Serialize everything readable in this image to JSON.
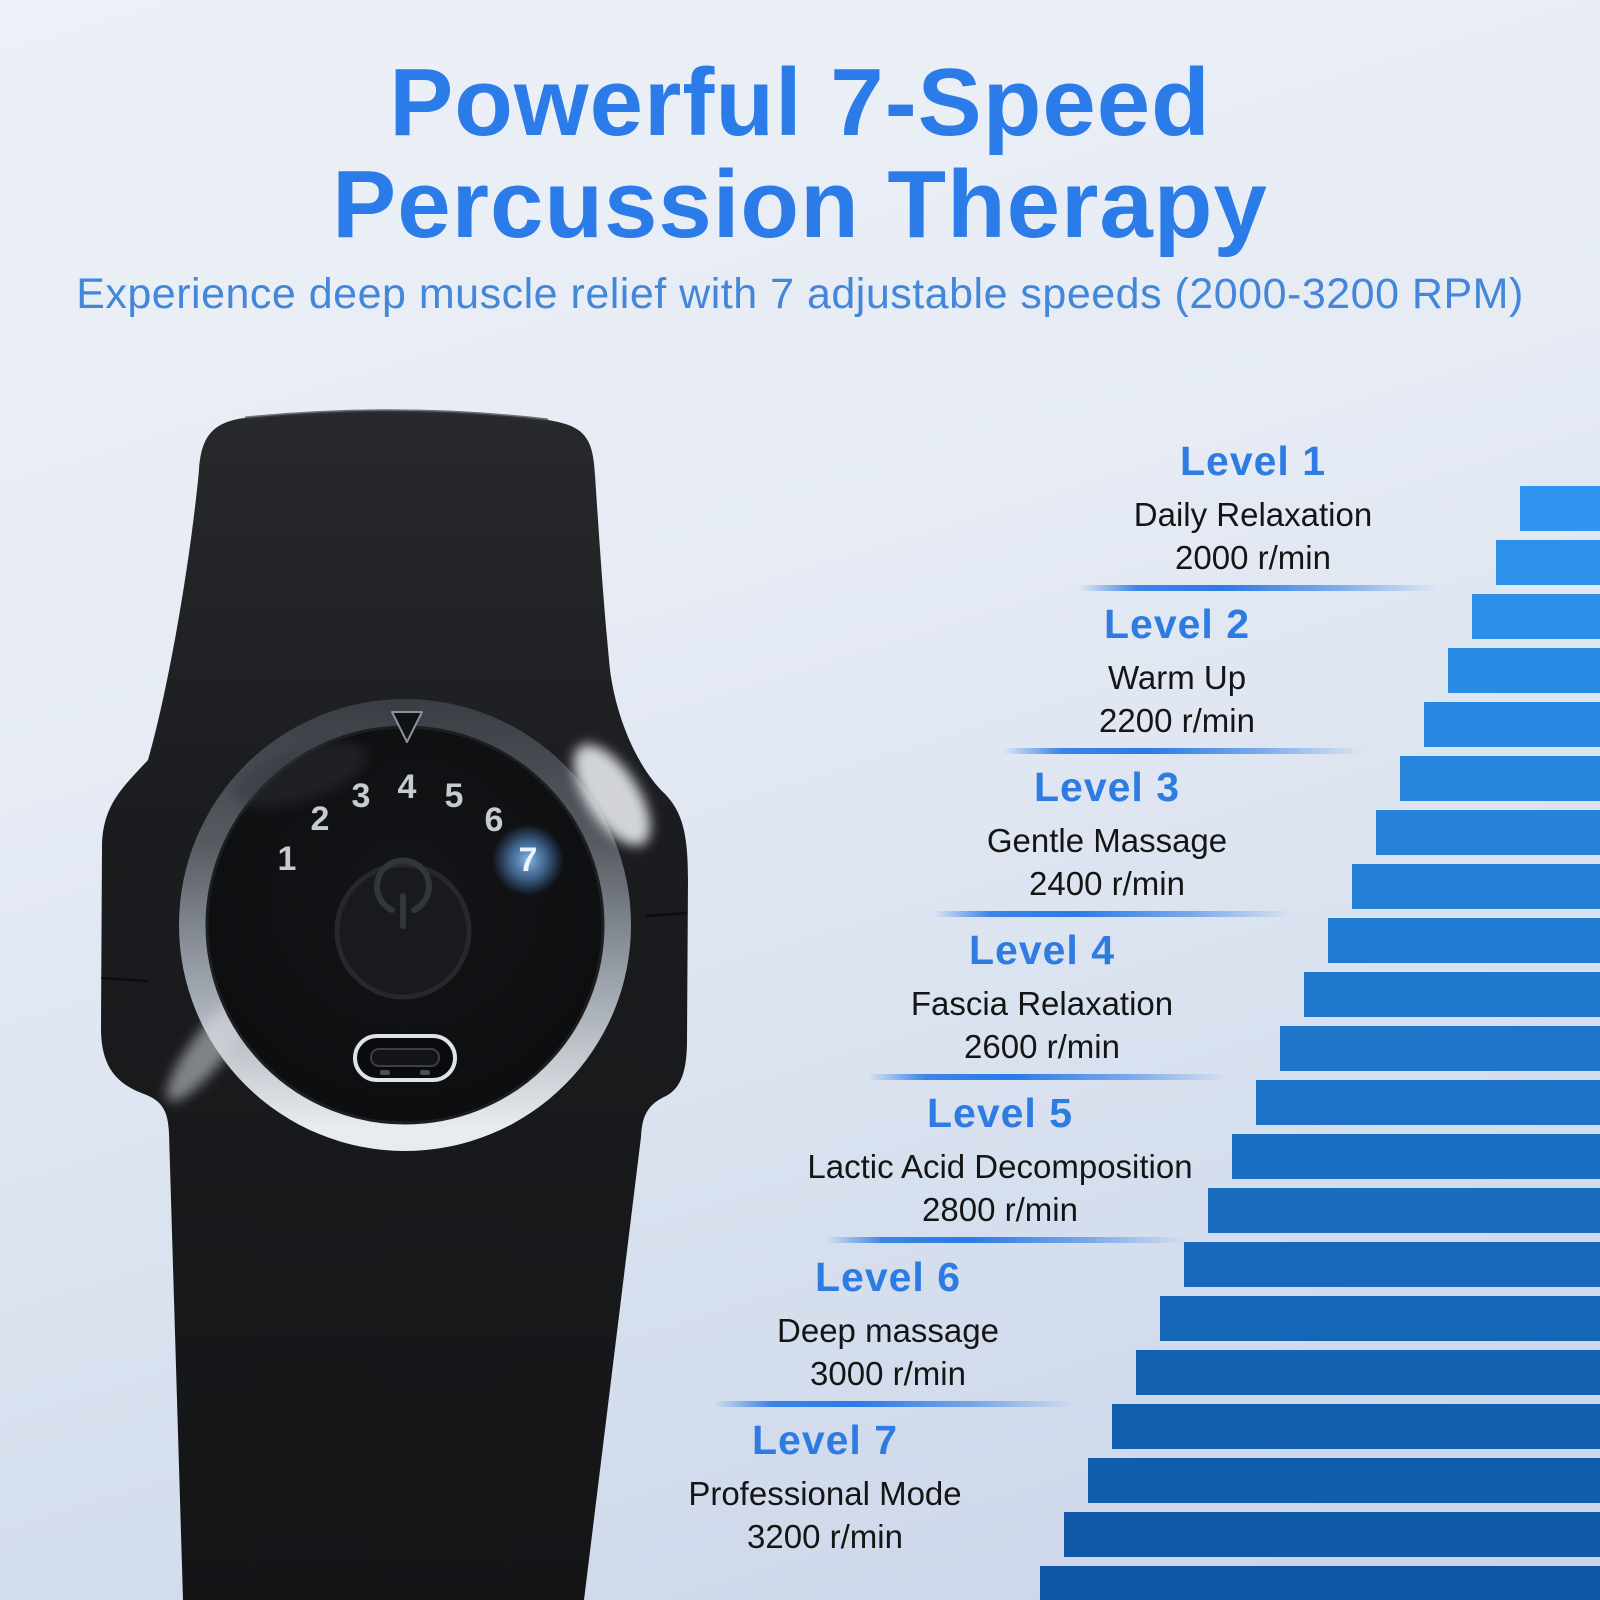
{
  "header": {
    "title_line1": "Powerful 7-Speed",
    "title_line2": "Percussion Therapy",
    "subtitle": "Experience deep muscle relief with 7 adjustable speeds (2000-3200 RPM)"
  },
  "levels": [
    {
      "level": "Level 1",
      "name": "Daily Relaxation",
      "rpm": "2000 r/min"
    },
    {
      "level": "Level 2",
      "name": "Warm Up",
      "rpm": "2200 r/min"
    },
    {
      "level": "Level 3",
      "name": "Gentle Massage",
      "rpm": "2400 r/min"
    },
    {
      "level": "Level 4",
      "name": "Fascia Relaxation",
      "rpm": "2600 r/min"
    },
    {
      "level": "Level 5",
      "name": "Lactic Acid Decomposition",
      "rpm": "2800 r/min"
    },
    {
      "level": "Level 6",
      "name": "Deep massage",
      "rpm": "3000 r/min"
    },
    {
      "level": "Level 7",
      "name": "Professional Mode",
      "rpm": "3200 r/min"
    }
  ],
  "device": {
    "dial_numbers": [
      "1",
      "2",
      "3",
      "4",
      "5",
      "6",
      "7"
    ],
    "active_number": "7"
  },
  "staircase": {
    "steps": 21,
    "color_top": "#2f94f0",
    "color_bottom": "#0e56a4"
  },
  "colors": {
    "title_blue": "#2b7be8",
    "subtitle_blue": "#4287da",
    "level_title_blue": "#2e7ce2",
    "text_dark": "#151515",
    "divider_blue": "#2b7ae6",
    "background_top": "#edf0f6",
    "background_bottom": "#c9d4e8",
    "dial_active_glow": "#6aa7e8"
  },
  "chart_data": {
    "type": "bar",
    "categories": [
      "Level 1",
      "Level 2",
      "Level 3",
      "Level 4",
      "Level 5",
      "Level 6",
      "Level 7"
    ],
    "values": [
      2000,
      2200,
      2400,
      2600,
      2800,
      3000,
      3200
    ],
    "units": "r/min",
    "title": "Powerful 7-Speed Percussion Therapy",
    "xlabel": "",
    "ylabel": "r/min",
    "ylim": [
      2000,
      3200
    ],
    "legend": false,
    "layout_hint": "decorative staircase of 21 blue steps, right-aligned, ascending toward top-right; light blue at top to dark blue at bottom"
  }
}
